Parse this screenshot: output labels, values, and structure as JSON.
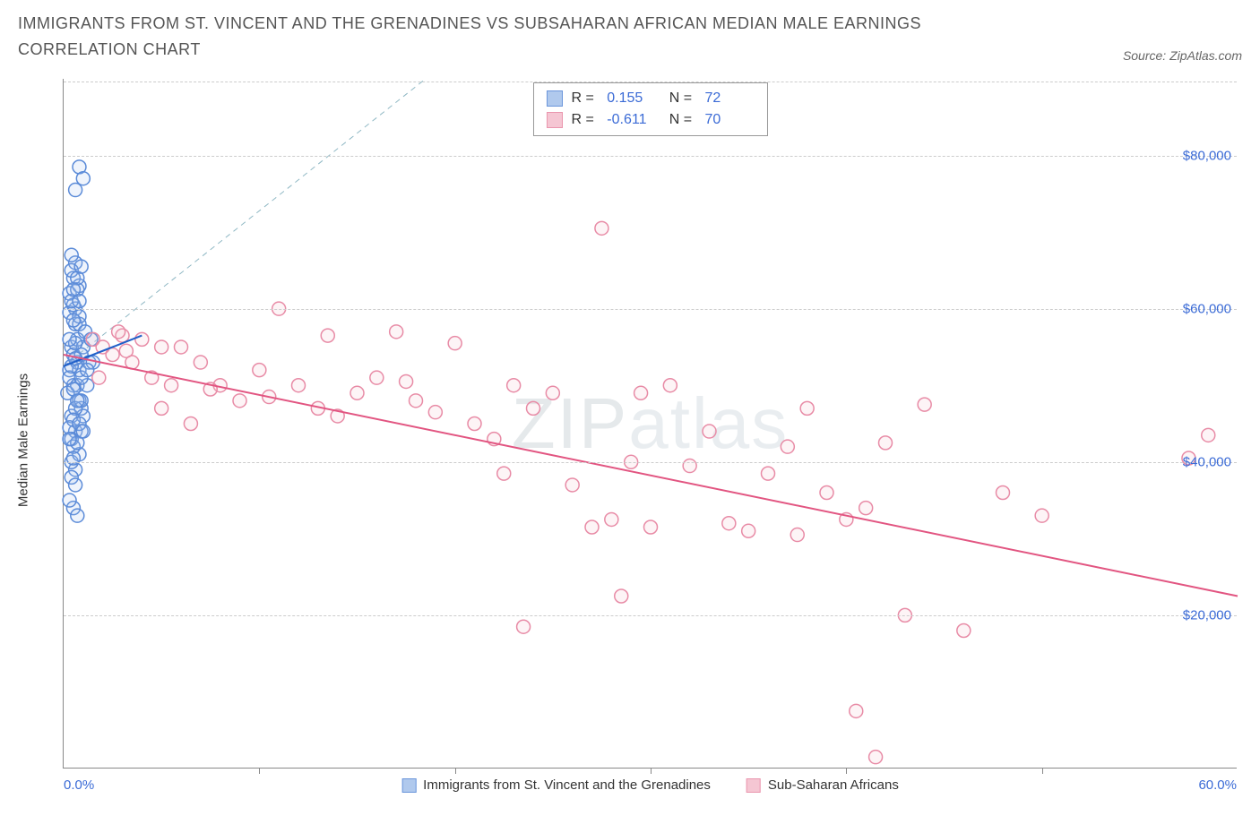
{
  "title": "IMMIGRANTS FROM ST. VINCENT AND THE GRENADINES VS SUBSAHARAN AFRICAN MEDIAN MALE EARNINGS CORRELATION CHART",
  "source": "Source: ZipAtlas.com",
  "y_axis_label": "Median Male Earnings",
  "watermark": "ZIPatlas",
  "chart": {
    "type": "scatter",
    "xlim": [
      0,
      60
    ],
    "ylim": [
      0,
      90000
    ],
    "x_tick_labels": [
      "0.0%",
      "60.0%"
    ],
    "x_minor_ticks": [
      10,
      20,
      30,
      40,
      50
    ],
    "y_ticks": [
      20000,
      40000,
      60000,
      80000
    ],
    "y_tick_labels": [
      "$20,000",
      "$40,000",
      "$60,000",
      "$80,000"
    ],
    "grid_color": "#cccccc",
    "axis_color": "#888888",
    "tick_label_color": "#3b6bd6",
    "background_color": "#ffffff",
    "y_label_fontsize": 15,
    "tick_fontsize": 15,
    "marker_radius": 7.5,
    "marker_fill_opacity": 0.18,
    "marker_stroke_width": 1.5,
    "trend_line_width": 2,
    "ref_line_width": 1,
    "ref_line_dash": "6,5",
    "series": [
      {
        "id": "svg_series",
        "label": "Immigrants from St. Vincent and the Grenadines",
        "color_stroke": "#5b8bd8",
        "color_fill": "#a8c4ec",
        "R": "0.155",
        "N": "72",
        "trend": {
          "x1": 0,
          "y1": 52500,
          "x2": 4.0,
          "y2": 56500,
          "color": "#1f5fc9"
        },
        "ref_line": {
          "x1": 0,
          "y1": 52500,
          "x2": 18.5,
          "y2": 90000,
          "color": "#8fb8c4"
        },
        "points": [
          [
            0.3,
            52000
          ],
          [
            0.4,
            55000
          ],
          [
            0.5,
            50000
          ],
          [
            0.6,
            58000
          ],
          [
            0.7,
            53000
          ],
          [
            0.8,
            48000
          ],
          [
            0.4,
            46000
          ],
          [
            0.6,
            60000
          ],
          [
            0.3,
            62000
          ],
          [
            0.5,
            64000
          ],
          [
            0.7,
            56000
          ],
          [
            0.2,
            49000
          ],
          [
            0.8,
            52000
          ],
          [
            0.9,
            47000
          ],
          [
            0.5,
            54000
          ],
          [
            0.6,
            44000
          ],
          [
            0.3,
            51000
          ],
          [
            0.7,
            50000
          ],
          [
            0.4,
            43000
          ],
          [
            1.0,
            55000
          ],
          [
            0.8,
            58000
          ],
          [
            1.1,
            57000
          ],
          [
            0.9,
            54000
          ],
          [
            1.2,
            50000
          ],
          [
            0.6,
            66000
          ],
          [
            0.4,
            67000
          ],
          [
            0.8,
            63000
          ],
          [
            1.3,
            53000
          ],
          [
            0.5,
            34000
          ],
          [
            0.7,
            33000
          ],
          [
            0.3,
            35000
          ],
          [
            0.6,
            39000
          ],
          [
            0.4,
            40000
          ],
          [
            0.8,
            41000
          ],
          [
            0.5,
            42000
          ],
          [
            0.9,
            44000
          ],
          [
            1.0,
            46000
          ],
          [
            0.6,
            47000
          ],
          [
            0.3,
            59500
          ],
          [
            0.5,
            60500
          ],
          [
            0.7,
            62500
          ],
          [
            0.4,
            61000
          ],
          [
            0.8,
            59000
          ],
          [
            0.6,
            55500
          ],
          [
            0.3,
            44500
          ],
          [
            0.5,
            45500
          ],
          [
            0.9,
            48000
          ],
          [
            0.5,
            49500
          ],
          [
            0.7,
            42500
          ],
          [
            0.4,
            38000
          ],
          [
            0.6,
            37000
          ],
          [
            0.3,
            56000
          ],
          [
            0.5,
            58500
          ],
          [
            0.7,
            48000
          ],
          [
            0.9,
            51000
          ],
          [
            0.4,
            52500
          ],
          [
            0.6,
            53500
          ],
          [
            0.8,
            45000
          ],
          [
            0.5,
            40500
          ],
          [
            0.3,
            43000
          ],
          [
            0.8,
            78500
          ],
          [
            1.0,
            77000
          ],
          [
            0.6,
            75500
          ],
          [
            0.4,
            65000
          ],
          [
            0.7,
            64000
          ],
          [
            0.9,
            65500
          ],
          [
            0.5,
            62500
          ],
          [
            0.8,
            61000
          ],
          [
            1.0,
            44000
          ],
          [
            1.5,
            53000
          ],
          [
            1.2,
            52000
          ],
          [
            1.4,
            56000
          ]
        ]
      },
      {
        "id": "ssa_series",
        "label": "Sub-Saharan Africans",
        "color_stroke": "#e88ba6",
        "color_fill": "#f5c0cf",
        "R": "-0.611",
        "N": "70",
        "trend": {
          "x1": 0,
          "y1": 54000,
          "x2": 60,
          "y2": 22500,
          "color": "#e25581"
        },
        "points": [
          [
            1.5,
            56000
          ],
          [
            2.0,
            55000
          ],
          [
            2.5,
            54000
          ],
          [
            3.0,
            56500
          ],
          [
            3.5,
            53000
          ],
          [
            4.0,
            56000
          ],
          [
            5.0,
            55000
          ],
          [
            2.8,
            57000
          ],
          [
            3.2,
            54500
          ],
          [
            1.8,
            51000
          ],
          [
            4.5,
            51000
          ],
          [
            5.5,
            50000
          ],
          [
            6.0,
            55000
          ],
          [
            7.0,
            53000
          ],
          [
            8.0,
            50000
          ],
          [
            9.0,
            48000
          ],
          [
            10.0,
            52000
          ],
          [
            11.0,
            60000
          ],
          [
            10.5,
            48500
          ],
          [
            12.0,
            50000
          ],
          [
            13.0,
            47000
          ],
          [
            14.0,
            46000
          ],
          [
            15.0,
            49000
          ],
          [
            13.5,
            56500
          ],
          [
            16.0,
            51000
          ],
          [
            17.0,
            57000
          ],
          [
            17.5,
            50500
          ],
          [
            18.0,
            48000
          ],
          [
            19.0,
            46500
          ],
          [
            20.0,
            55500
          ],
          [
            21.0,
            45000
          ],
          [
            22.0,
            43000
          ],
          [
            22.5,
            38500
          ],
          [
            23.0,
            50000
          ],
          [
            24.0,
            47000
          ],
          [
            23.5,
            18500
          ],
          [
            25.0,
            49000
          ],
          [
            26.0,
            37000
          ],
          [
            27.0,
            31500
          ],
          [
            27.5,
            70500
          ],
          [
            28.0,
            32500
          ],
          [
            28.5,
            22500
          ],
          [
            29.0,
            40000
          ],
          [
            29.5,
            49000
          ],
          [
            30.0,
            31500
          ],
          [
            31.0,
            50000
          ],
          [
            32.0,
            39500
          ],
          [
            33.0,
            44000
          ],
          [
            34.0,
            32000
          ],
          [
            35.0,
            31000
          ],
          [
            36.0,
            38500
          ],
          [
            37.0,
            42000
          ],
          [
            37.5,
            30500
          ],
          [
            38.0,
            47000
          ],
          [
            39.0,
            36000
          ],
          [
            40.0,
            32500
          ],
          [
            41.0,
            34000
          ],
          [
            41.5,
            1500
          ],
          [
            42.0,
            42500
          ],
          [
            43.0,
            20000
          ],
          [
            46.0,
            18000
          ],
          [
            40.5,
            7500
          ],
          [
            44.0,
            47500
          ],
          [
            48.0,
            36000
          ],
          [
            50.0,
            33000
          ],
          [
            57.5,
            40500
          ],
          [
            58.5,
            43500
          ],
          [
            5.0,
            47000
          ],
          [
            6.5,
            45000
          ],
          [
            7.5,
            49500
          ]
        ]
      }
    ]
  }
}
